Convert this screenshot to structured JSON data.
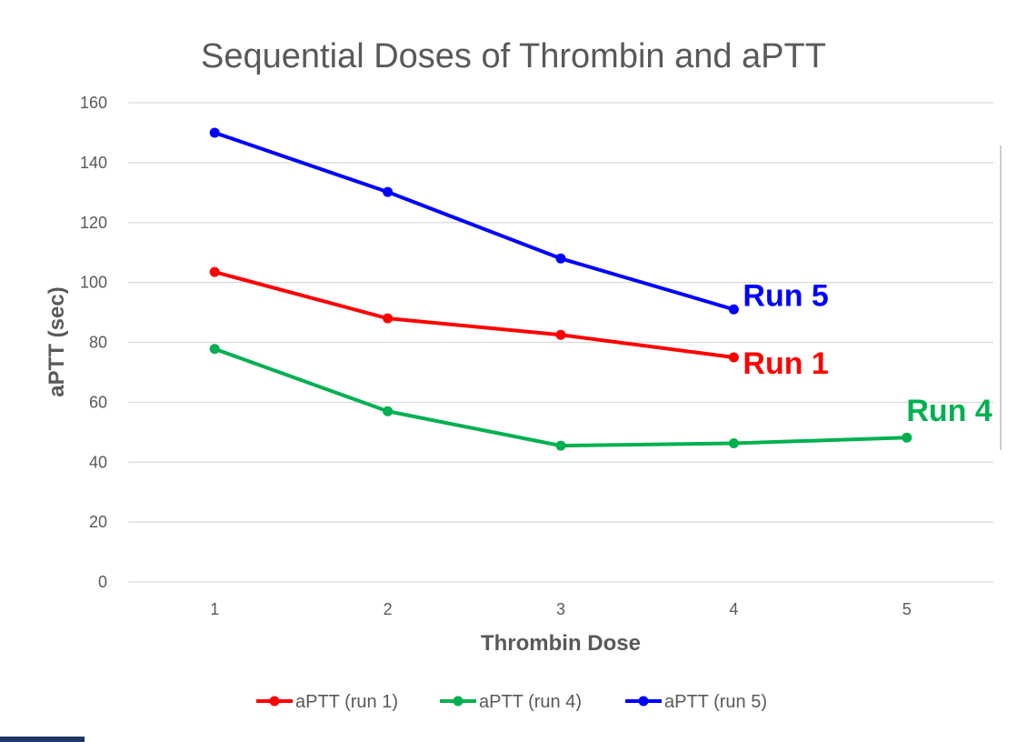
{
  "chart_data": {
    "type": "line",
    "title": "Sequential Doses of Thrombin and aPTT",
    "xlabel": "Thrombin Dose",
    "ylabel": "aPTT (sec)",
    "x": [
      1,
      2,
      3,
      4,
      5
    ],
    "x_tick_labels": [
      "1",
      "2",
      "3",
      "4",
      "5"
    ],
    "ylim": [
      0,
      160
    ],
    "y_ticks": [
      0,
      20,
      40,
      60,
      80,
      100,
      120,
      140,
      160
    ],
    "y_tick_labels": [
      "0",
      "20",
      "40",
      "60",
      "80",
      "100",
      "120",
      "140",
      "160"
    ],
    "grid": true,
    "legend_position": "bottom",
    "series": [
      {
        "name": "aPTT (run 1)",
        "color": "#ff0000",
        "x": [
          1,
          2,
          3,
          4
        ],
        "values": [
          103.5,
          88,
          82.5,
          75
        ]
      },
      {
        "name": "aPTT (run 4)",
        "color": "#00b050",
        "x": [
          1,
          2,
          3,
          4,
          5
        ],
        "values": [
          77.8,
          57,
          45.5,
          46.3,
          48.2
        ]
      },
      {
        "name": "aPTT (run 5)",
        "color": "#0000ff",
        "x": [
          1,
          2,
          3,
          4
        ],
        "values": [
          150,
          130.2,
          108,
          91
        ]
      }
    ],
    "annotations": [
      {
        "text": "Run 5",
        "color": "#0000ff",
        "series": 2
      },
      {
        "text": "Run 1",
        "color": "#ff0000",
        "series": 0
      },
      {
        "text": "Run 4",
        "color": "#00b050",
        "series": 1
      }
    ]
  }
}
